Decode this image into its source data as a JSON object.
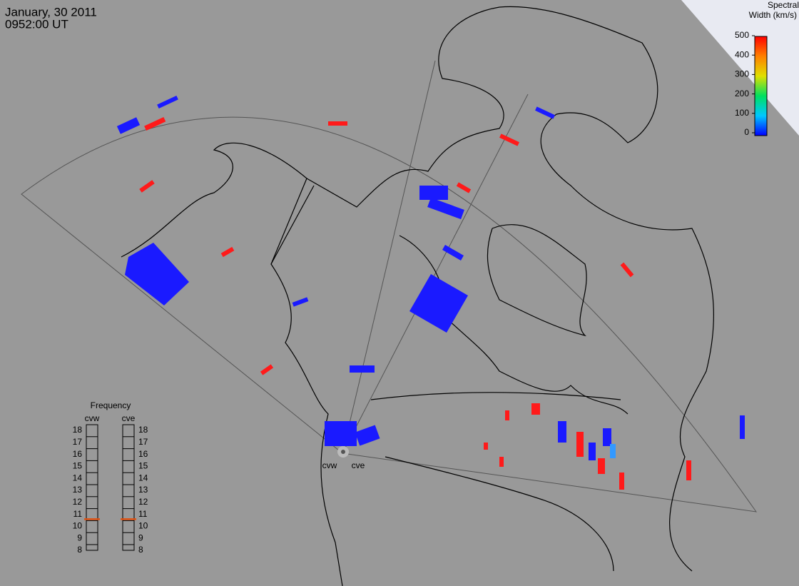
{
  "header": {
    "date": "January, 30 2011",
    "time": "0952:00 UT"
  },
  "colorbar": {
    "title_line1": "Spectral",
    "title_line2": "Width (km/s)",
    "range": [
      0,
      500
    ],
    "ticks": [
      0,
      100,
      200,
      300,
      400,
      500
    ]
  },
  "frequency": {
    "title": "Frequency",
    "range": [
      8,
      18
    ],
    "ticks": [
      8,
      9,
      10,
      11,
      12,
      13,
      14,
      15,
      16,
      17,
      18
    ],
    "radars": [
      {
        "name": "cvw",
        "value": 10.6
      },
      {
        "name": "cve",
        "value": 10.6
      }
    ]
  },
  "stations": [
    {
      "name": "cvw"
    },
    {
      "name": "cve"
    }
  ]
}
